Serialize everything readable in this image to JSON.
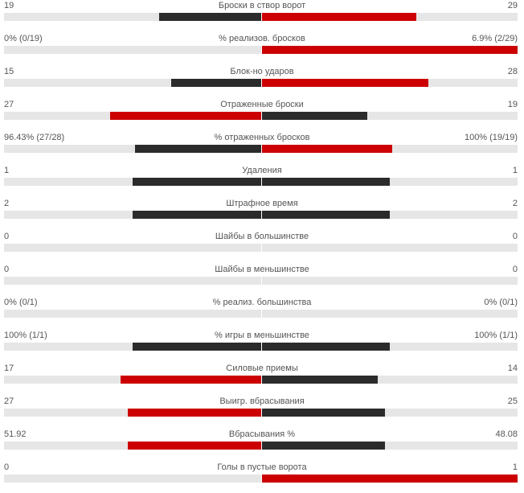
{
  "colors": {
    "winner": "#cc0000",
    "loser": "#2b2b2b",
    "track": "#e6e6e6"
  },
  "stats": [
    {
      "label": "Броски в створ ворот",
      "home": "19",
      "away": "29",
      "home_ratio": 0.396,
      "away_ratio": 0.604,
      "leader": "away"
    },
    {
      "label": "% реализов. бросков",
      "home": "0% (0/19)",
      "away": "6.9% (2/29)",
      "home_ratio": 0.0,
      "away_ratio": 1.0,
      "leader": "away"
    },
    {
      "label": "Блок-но ударов",
      "home": "15",
      "away": "28",
      "home_ratio": 0.349,
      "away_ratio": 0.651,
      "leader": "away"
    },
    {
      "label": "Отраженные броски",
      "home": "27",
      "away": "19",
      "home_ratio": 0.587,
      "away_ratio": 0.413,
      "leader": "home"
    },
    {
      "label": "% отраженных бросков",
      "home": "96.43% (27/28)",
      "away": "100% (19/19)",
      "home_ratio": 0.491,
      "away_ratio": 0.509,
      "leader": "away"
    },
    {
      "label": "Удаления",
      "home": "1",
      "away": "1",
      "home_ratio": 0.5,
      "away_ratio": 0.5,
      "leader": "none"
    },
    {
      "label": "Штрафное время",
      "home": "2",
      "away": "2",
      "home_ratio": 0.5,
      "away_ratio": 0.5,
      "leader": "none"
    },
    {
      "label": "Шайбы в большинстве",
      "home": "0",
      "away": "0",
      "home_ratio": 0.0,
      "away_ratio": 0.0,
      "leader": "none"
    },
    {
      "label": "Шайбы в меньшинстве",
      "home": "0",
      "away": "0",
      "home_ratio": 0.0,
      "away_ratio": 0.0,
      "leader": "none"
    },
    {
      "label": "% реализ. большинства",
      "home": "0% (0/1)",
      "away": "0% (0/1)",
      "home_ratio": 0.0,
      "away_ratio": 0.0,
      "leader": "none"
    },
    {
      "label": "% игры в меньшинстве",
      "home": "100% (1/1)",
      "away": "100% (1/1)",
      "home_ratio": 0.5,
      "away_ratio": 0.5,
      "leader": "none"
    },
    {
      "label": "Силовые приемы",
      "home": "17",
      "away": "14",
      "home_ratio": 0.548,
      "away_ratio": 0.452,
      "leader": "home"
    },
    {
      "label": "Выигр. вбрасывания",
      "home": "27",
      "away": "25",
      "home_ratio": 0.519,
      "away_ratio": 0.481,
      "leader": "home"
    },
    {
      "label": "Вбрасывания %",
      "home": "51.92",
      "away": "48.08",
      "home_ratio": 0.5192,
      "away_ratio": 0.4808,
      "leader": "home"
    },
    {
      "label": "Голы в пустые ворота",
      "home": "0",
      "away": "1",
      "home_ratio": 0.0,
      "away_ratio": 1.0,
      "leader": "away"
    }
  ]
}
